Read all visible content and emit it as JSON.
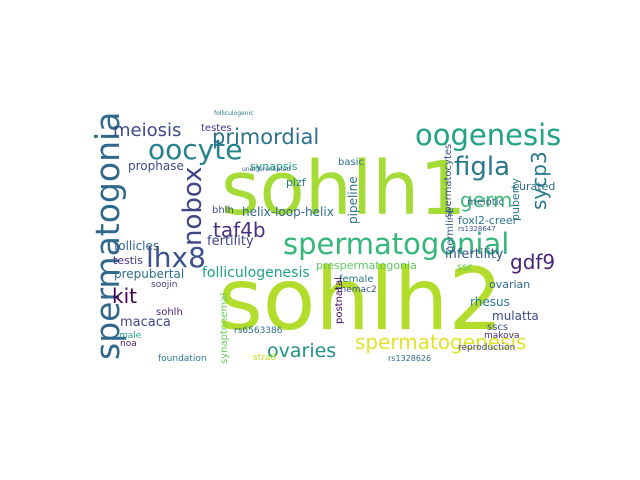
{
  "cloud": {
    "words": [
      {
        "id": "sohlh1",
        "text": "sohlh1",
        "color": "#a5db36"
      },
      {
        "id": "sohlh2",
        "text": "sohlh2",
        "color": "#b2dd2d"
      },
      {
        "id": "spermatogonial",
        "text": "spermatogonial",
        "color": "#35b779"
      },
      {
        "id": "spermatogonia",
        "text": "spermatogonia",
        "color": "#31688e"
      },
      {
        "id": "oogenesis",
        "text": "oogenesis",
        "color": "#20a386"
      },
      {
        "id": "oocyte",
        "text": "oocyte",
        "color": "#26828e"
      },
      {
        "id": "nobox",
        "text": "nobox",
        "color": "#414487"
      },
      {
        "id": "lhx8",
        "text": "lhx8",
        "color": "#3b528b"
      },
      {
        "id": "figla",
        "text": "figla",
        "color": "#2a788e"
      },
      {
        "id": "spermatogenesis",
        "text": "spermatogenesis",
        "color": "#e1e32a"
      },
      {
        "id": "primordial",
        "text": "primordial",
        "color": "#2c728e"
      },
      {
        "id": "meiosis",
        "text": "meiosis",
        "color": "#3e4a89"
      },
      {
        "id": "germ",
        "text": "germ",
        "color": "#3aba76"
      },
      {
        "id": "sycp3",
        "text": "sycp3",
        "color": "#2a788e"
      },
      {
        "id": "taf4b",
        "text": "taf4b",
        "color": "#46327e"
      },
      {
        "id": "gdf9",
        "text": "gdf9",
        "color": "#482475"
      },
      {
        "id": "kit",
        "text": "kit",
        "color": "#440154"
      },
      {
        "id": "ovaries",
        "text": "ovaries",
        "color": "#21918c"
      },
      {
        "id": "folliculogenesis",
        "text": "folliculogenesis",
        "color": "#1fa187"
      },
      {
        "id": "fertility",
        "text": "fertility",
        "color": "#404688"
      },
      {
        "id": "infertility",
        "text": "infertility",
        "color": "#39568c"
      },
      {
        "id": "follicles",
        "text": "follicles",
        "color": "#33638d"
      },
      {
        "id": "prepubertal",
        "text": "prepubertal",
        "color": "#2d708e"
      },
      {
        "id": "testis",
        "text": "testis",
        "color": "#46327e"
      },
      {
        "id": "macaca",
        "text": "macaca",
        "color": "#3f4788"
      },
      {
        "id": "prophase",
        "text": "prophase",
        "color": "#3e4989"
      },
      {
        "id": "synapsis",
        "text": "synapsis",
        "color": "#20a386"
      },
      {
        "id": "plzf",
        "text": "plzf",
        "color": "#287c8e"
      },
      {
        "id": "bhlh",
        "text": "bhlh",
        "color": "#3b528b"
      },
      {
        "id": "helixloophelix",
        "text": "helix-loop-helix",
        "color": "#31688e"
      },
      {
        "id": "testes",
        "text": "testes",
        "color": "#453581"
      },
      {
        "id": "foxl2",
        "text": "foxl2-creer",
        "color": "#2c728e"
      },
      {
        "id": "meiotic",
        "text": "meiotic",
        "color": "#355f8d"
      },
      {
        "id": "curated",
        "text": "curated",
        "color": "#2f6c8e"
      },
      {
        "id": "puberty",
        "text": "puberty",
        "color": "#2a788e"
      },
      {
        "id": "basic",
        "text": "basic",
        "color": "#2f6c8e"
      },
      {
        "id": "pipeline",
        "text": "pipeline",
        "color": "#2c728e"
      },
      {
        "id": "spermatocytes",
        "text": "spermatocytes",
        "color": "#3b528b"
      },
      {
        "id": "germline",
        "text": "germline",
        "color": "#355f8d"
      },
      {
        "id": "prespermatogonia",
        "text": "prespermatogonia",
        "color": "#5ec962"
      },
      {
        "id": "female",
        "text": "female",
        "color": "#2a788e"
      },
      {
        "id": "rhesus",
        "text": "rhesus",
        "color": "#287c8e"
      },
      {
        "id": "ssc",
        "text": "ssc",
        "color": "#5ec962"
      },
      {
        "id": "ovarian",
        "text": "ovarian",
        "color": "#31688e"
      },
      {
        "id": "mulatta",
        "text": "mulatta",
        "color": "#3e4a89"
      },
      {
        "id": "sscs",
        "text": "sscs",
        "color": "#3b528b"
      },
      {
        "id": "makova",
        "text": "makova",
        "color": "#46327e"
      },
      {
        "id": "reproduction",
        "text": "reproduction",
        "color": "#3e4989"
      },
      {
        "id": "foundation",
        "text": "foundation",
        "color": "#2a788e"
      },
      {
        "id": "noa",
        "text": "noa",
        "color": "#481f70"
      },
      {
        "id": "male",
        "text": "male",
        "color": "#22a884"
      },
      {
        "id": "sohlh",
        "text": "sohlh",
        "color": "#482878"
      },
      {
        "id": "soojin",
        "text": "soojin",
        "color": "#433e85"
      },
      {
        "id": "synaptonemal",
        "text": "synaptonemal",
        "color": "#6ccd5a"
      },
      {
        "id": "rs6563386",
        "text": "rs6563386",
        "color": "#2d708e"
      },
      {
        "id": "stra8",
        "text": "stra8",
        "color": "#c2df23"
      },
      {
        "id": "postnatal",
        "text": "postnatal",
        "color": "#440154"
      },
      {
        "id": "rhemac2",
        "text": "rhemac2",
        "color": "#3b528b"
      },
      {
        "id": "rs1328626",
        "text": "rs1328626",
        "color": "#31688e"
      },
      {
        "id": "undifferentiated",
        "text": "undifferentiated",
        "color": "#355f8d"
      },
      {
        "id": "folliculogenic",
        "text": "folliculogenic",
        "color": "#2a788e"
      },
      {
        "id": "rs1328647",
        "text": "rs1328647",
        "color": "#3b528b"
      }
    ]
  }
}
